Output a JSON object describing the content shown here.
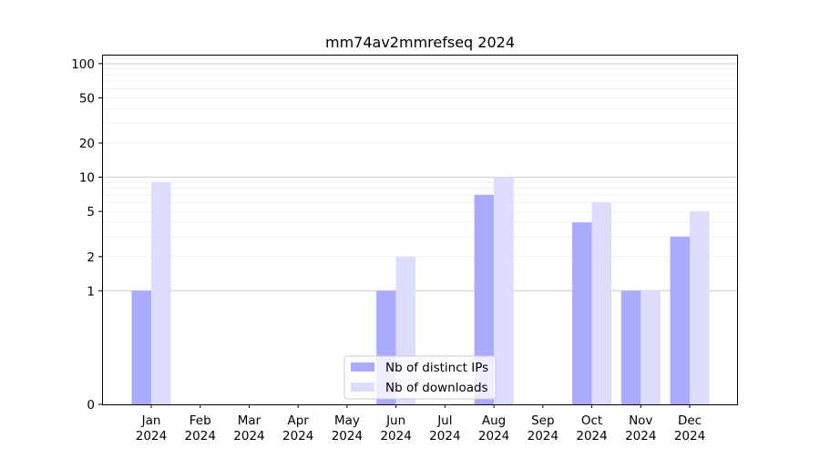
{
  "chart_data": {
    "type": "bar",
    "title": "mm74av2mmrefseq 2024",
    "xlabel": "",
    "ylabel": "",
    "yscale": "symlog",
    "ylim": [
      0,
      120
    ],
    "yticks": [
      0,
      1,
      2,
      5,
      10,
      20,
      50,
      100
    ],
    "grid": "horizontal",
    "legend_position": "lower-center",
    "categories": [
      [
        "Jan",
        "2024"
      ],
      [
        "Feb",
        "2024"
      ],
      [
        "Mar",
        "2024"
      ],
      [
        "Apr",
        "2024"
      ],
      [
        "May",
        "2024"
      ],
      [
        "Jun",
        "2024"
      ],
      [
        "Jul",
        "2024"
      ],
      [
        "Aug",
        "2024"
      ],
      [
        "Sep",
        "2024"
      ],
      [
        "Oct",
        "2024"
      ],
      [
        "Nov",
        "2024"
      ],
      [
        "Dec",
        "2024"
      ]
    ],
    "series": [
      {
        "name": "Nb of distinct IPs",
        "color": "#aaaaff",
        "values": [
          1,
          0,
          0,
          0,
          0,
          1,
          0,
          7,
          0,
          4,
          1,
          3
        ]
      },
      {
        "name": "Nb of downloads",
        "color": "#dcdcff",
        "values": [
          9,
          0,
          0,
          0,
          0,
          2,
          0,
          10,
          0,
          6,
          1,
          5
        ]
      }
    ]
  }
}
